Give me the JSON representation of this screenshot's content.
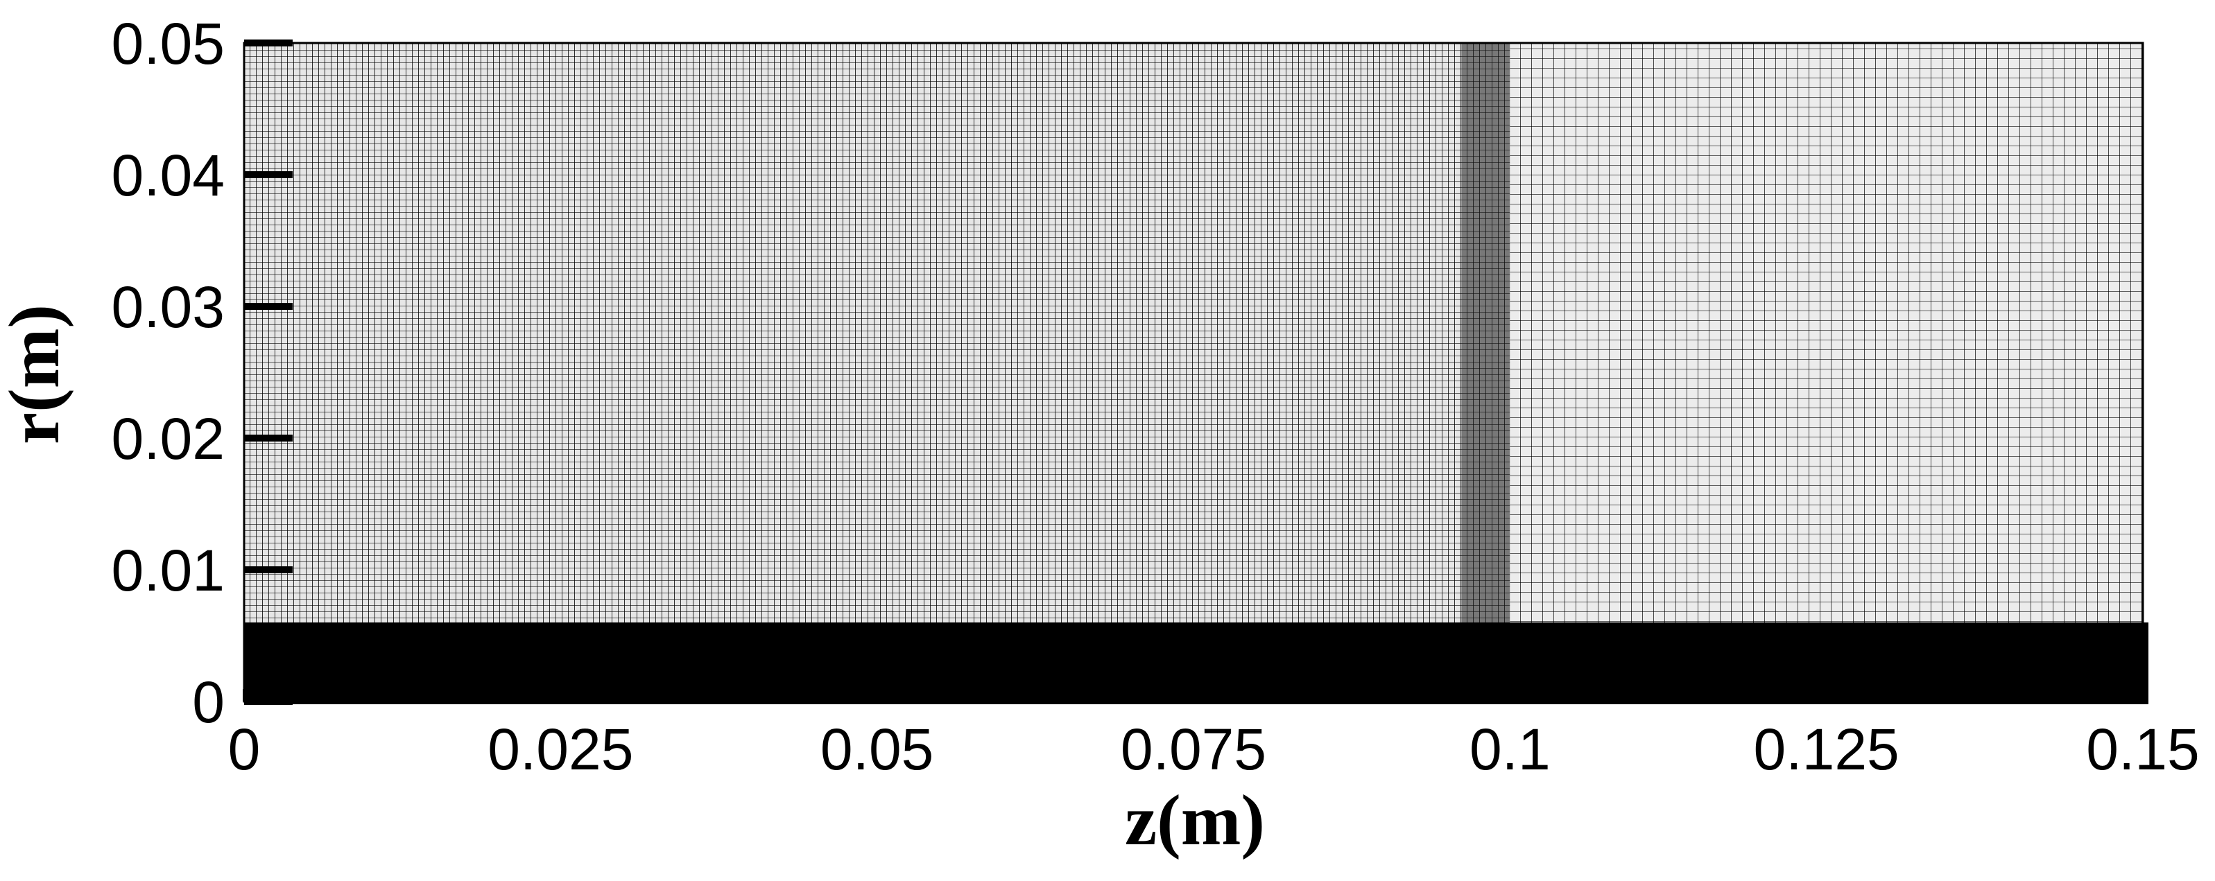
{
  "chart_data": {
    "type": "mesh",
    "xlabel": "z(m)",
    "ylabel": "r(m)",
    "xlim": [
      0,
      0.15
    ],
    "ylim": [
      0,
      0.05
    ],
    "x_ticks": [
      {
        "value": 0,
        "label": "0"
      },
      {
        "value": 0.025,
        "label": "0.025"
      },
      {
        "value": 0.05,
        "label": "0.05"
      },
      {
        "value": 0.075,
        "label": "0.075"
      },
      {
        "value": 0.1,
        "label": "0.1"
      },
      {
        "value": 0.125,
        "label": "0.125"
      },
      {
        "value": 0.15,
        "label": "0.15"
      }
    ],
    "y_ticks": [
      {
        "value": 0,
        "label": "0"
      },
      {
        "value": 0.01,
        "label": "0.01"
      },
      {
        "value": 0.02,
        "label": "0.02"
      },
      {
        "value": 0.03,
        "label": "0.03"
      },
      {
        "value": 0.04,
        "label": "0.04"
      },
      {
        "value": 0.05,
        "label": "0.05"
      }
    ],
    "mesh": {
      "z_refinement_boundary": 0.1,
      "r_dense_band_top": 0.006,
      "fine_region_color": "#bcbcbc",
      "coarse_region_color": "#d6d6d6",
      "dense_band_color": "#000000",
      "line_color": "#000000"
    }
  }
}
